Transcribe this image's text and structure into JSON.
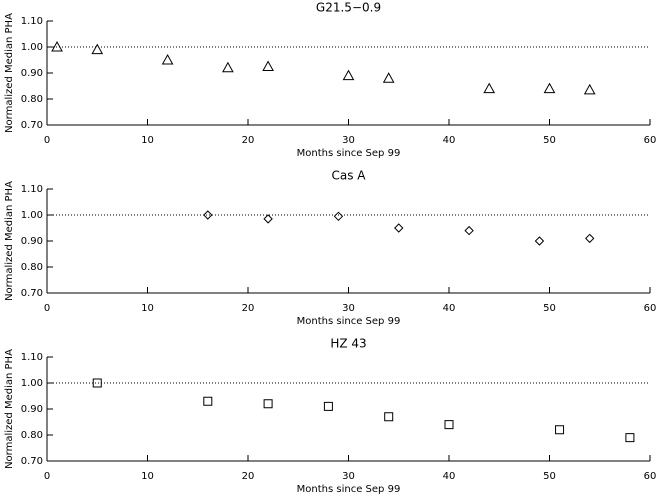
{
  "chart_data": [
    {
      "type": "scatter",
      "title": "G21.5−0.9",
      "xlabel": "Months since Sep 99",
      "ylabel": "Normalized Median PHA",
      "x": [
        1,
        5,
        12,
        18,
        22,
        30,
        34,
        44,
        50,
        54
      ],
      "values": [
        1.0,
        0.99,
        0.95,
        0.92,
        0.925,
        0.89,
        0.88,
        0.84,
        0.84,
        0.835
      ],
      "marker": "triangle",
      "color": "#000000",
      "hline": 1.0,
      "xlim": [
        0,
        60
      ],
      "ylim": [
        0.7,
        1.1
      ],
      "xticks": [
        0,
        10,
        20,
        30,
        40,
        50,
        60
      ],
      "yticks": [
        {
          "value": 0.7,
          "label": "0.70"
        },
        {
          "value": 0.8,
          "label": "0.80"
        },
        {
          "value": 0.9,
          "label": "0.90"
        },
        {
          "value": 1.0,
          "label": "1.00"
        },
        {
          "value": 1.1,
          "label": "1.10"
        }
      ]
    },
    {
      "type": "scatter",
      "title": "Cas A",
      "xlabel": "Months since Sep 99",
      "ylabel": "Normalized Median PHA",
      "x": [
        16,
        22,
        29,
        35,
        42,
        49,
        54
      ],
      "values": [
        1.0,
        0.985,
        0.995,
        0.95,
        0.94,
        0.9,
        0.91
      ],
      "marker": "diamond",
      "color": "#000000",
      "hline": 1.0,
      "xlim": [
        0,
        60
      ],
      "ylim": [
        0.7,
        1.1
      ],
      "xticks": [
        0,
        10,
        20,
        30,
        40,
        50,
        60
      ],
      "yticks": [
        {
          "value": 0.7,
          "label": "0.70"
        },
        {
          "value": 0.8,
          "label": "0.80"
        },
        {
          "value": 0.9,
          "label": "0.90"
        },
        {
          "value": 1.0,
          "label": "1.00"
        },
        {
          "value": 1.1,
          "label": "1.10"
        }
      ]
    },
    {
      "type": "scatter",
      "title": "HZ 43",
      "xlabel": "Months since Sep 99",
      "ylabel": "Normalized Median PHA",
      "x": [
        5,
        16,
        22,
        28,
        34,
        40,
        51,
        58
      ],
      "values": [
        1.0,
        0.93,
        0.92,
        0.91,
        0.87,
        0.84,
        0.82,
        0.79
      ],
      "marker": "square",
      "color": "#000000",
      "hline": 1.0,
      "xlim": [
        0,
        60
      ],
      "ylim": [
        0.7,
        1.1
      ],
      "xticks": [
        0,
        10,
        20,
        30,
        40,
        50,
        60
      ],
      "yticks": [
        {
          "value": 0.7,
          "label": "0.70"
        },
        {
          "value": 0.8,
          "label": "0.80"
        },
        {
          "value": 0.9,
          "label": "0.90"
        },
        {
          "value": 1.0,
          "label": "1.00"
        },
        {
          "value": 1.1,
          "label": "1.10"
        }
      ]
    }
  ]
}
